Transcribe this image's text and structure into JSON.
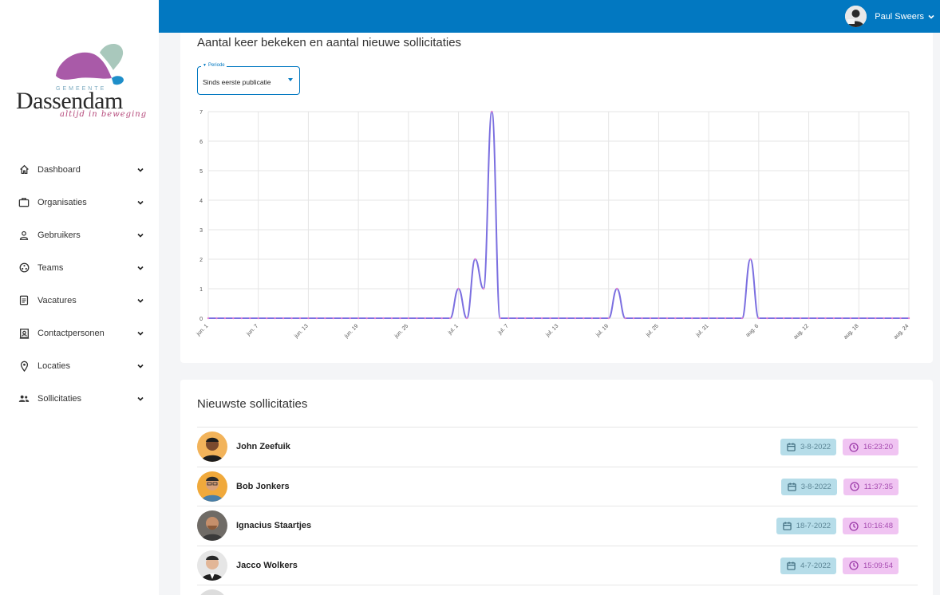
{
  "logo": {
    "gemeente": "GEMEENTE",
    "city": "Dassendam",
    "tagline": "altijd in beweging"
  },
  "user": {
    "name": "Paul Sweers",
    "avatar_icon": "user-avatar-icon"
  },
  "sidebar": {
    "items": [
      {
        "label": "Dashboard",
        "icon": "home-icon"
      },
      {
        "label": "Organisaties",
        "icon": "briefcase-icon"
      },
      {
        "label": "Gebruikers",
        "icon": "person-icon"
      },
      {
        "label": "Teams",
        "icon": "team-icon"
      },
      {
        "label": "Vacatures",
        "icon": "document-icon"
      },
      {
        "label": "Contactpersonen",
        "icon": "contact-card-icon"
      },
      {
        "label": "Locaties",
        "icon": "location-pin-icon"
      },
      {
        "label": "Sollicitaties",
        "icon": "people-icon"
      }
    ]
  },
  "views_card": {
    "title": "Aantal keer bekeken en aantal nieuwe sollicitaties",
    "period_select": {
      "label": "Periode",
      "value": "Sinds eerste publicatie"
    }
  },
  "chart_data": {
    "type": "line",
    "title": "",
    "xlabel": "",
    "ylabel": "",
    "x": [
      "2022-06-01",
      "2022-06-02",
      "2022-06-03",
      "2022-06-04",
      "2022-06-05",
      "2022-06-06",
      "2022-06-07",
      "2022-06-08",
      "2022-06-09",
      "2022-06-10",
      "2022-06-11",
      "2022-06-12",
      "2022-06-13",
      "2022-06-14",
      "2022-06-15",
      "2022-06-16",
      "2022-06-17",
      "2022-06-18",
      "2022-06-19",
      "2022-06-20",
      "2022-06-21",
      "2022-06-22",
      "2022-06-23",
      "2022-06-24",
      "2022-06-25",
      "2022-06-26",
      "2022-06-27",
      "2022-06-28",
      "2022-06-29",
      "2022-06-30",
      "2022-07-01",
      "2022-07-02",
      "2022-07-03",
      "2022-07-04",
      "2022-07-05",
      "2022-07-06",
      "2022-07-07",
      "2022-07-08",
      "2022-07-09",
      "2022-07-10",
      "2022-07-11",
      "2022-07-12",
      "2022-07-13",
      "2022-07-14",
      "2022-07-15",
      "2022-07-16",
      "2022-07-17",
      "2022-07-18",
      "2022-07-19",
      "2022-07-20",
      "2022-07-21",
      "2022-07-22",
      "2022-07-23",
      "2022-07-24",
      "2022-07-25",
      "2022-07-26",
      "2022-07-27",
      "2022-07-28",
      "2022-07-29",
      "2022-07-30",
      "2022-07-31",
      "2022-08-01",
      "2022-08-02",
      "2022-08-03",
      "2022-08-04",
      "2022-08-05",
      "2022-08-06",
      "2022-08-07",
      "2022-08-08",
      "2022-08-09",
      "2022-08-10",
      "2022-08-11",
      "2022-08-12",
      "2022-08-13",
      "2022-08-14",
      "2022-08-15",
      "2022-08-16",
      "2022-08-17",
      "2022-08-18",
      "2022-08-19",
      "2022-08-20",
      "2022-08-21",
      "2022-08-22",
      "2022-08-23",
      "2022-08-24"
    ],
    "series": [
      {
        "values": [
          0,
          0,
          0,
          0,
          0,
          0,
          0,
          0,
          0,
          0,
          0,
          0,
          0,
          0,
          0,
          0,
          0,
          0,
          0,
          0,
          0,
          0,
          0,
          0,
          0,
          0,
          0,
          0,
          0,
          0,
          1,
          0,
          2,
          1,
          7,
          0,
          0,
          0,
          0,
          0,
          0,
          0,
          0,
          0,
          0,
          0,
          0,
          0,
          0,
          1,
          0,
          0,
          0,
          0,
          0,
          0,
          0,
          0,
          0,
          0,
          0,
          0,
          0,
          0,
          0,
          2,
          0,
          0,
          0,
          0,
          0,
          0,
          0,
          0,
          0,
          0,
          0,
          0,
          0,
          0,
          0,
          0,
          0,
          0,
          0
        ],
        "color": "#7b6fe0"
      }
    ],
    "x_tick_labels": [
      "jun. 1",
      "jun. 7",
      "jun. 13",
      "jun. 19",
      "jun. 25",
      "jul. 1",
      "jul. 7",
      "jul. 13",
      "jul. 19",
      "jul. 25",
      "jul. 31",
      "aug. 6",
      "aug. 12",
      "aug. 18",
      "aug. 24"
    ],
    "y_ticks": [
      0,
      1,
      2,
      3,
      4,
      5,
      6,
      7
    ],
    "ylim": [
      0,
      7
    ],
    "grid": true,
    "point_color": "#e27fd0"
  },
  "applications_card": {
    "title": "Nieuwste sollicitaties",
    "rows": [
      {
        "name": "John Zeefuik",
        "date": "3-8-2022",
        "time": "16:23:20"
      },
      {
        "name": "Bob Jonkers",
        "date": "3-8-2022",
        "time": "11:37:35"
      },
      {
        "name": "Ignacius Staartjes",
        "date": "18-7-2022",
        "time": "10:16:48"
      },
      {
        "name": "Jacco Wolkers",
        "date": "4-7-2022",
        "time": "15:09:54"
      }
    ]
  },
  "colors": {
    "topbar": "#0278c1",
    "date_badge": "#b6dde9",
    "time_badge": "#f0c4f2",
    "line": "#7b6fe0"
  }
}
